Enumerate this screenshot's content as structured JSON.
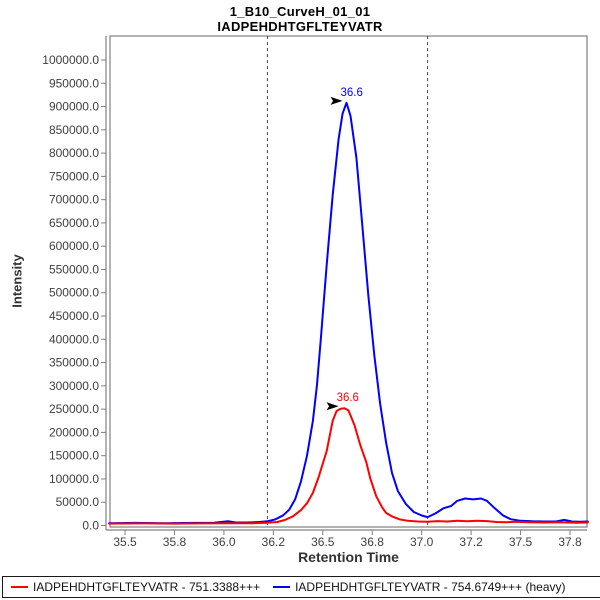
{
  "title": {
    "line1": "1_B10_CurveH_01_01",
    "line2": "IADPEHDHTGFLTEYVATR"
  },
  "axes": {
    "x_label": "Retention Time",
    "y_label": "Intensity"
  },
  "legend": {
    "entries": [
      {
        "label": "IADPEHDHTGFLTEYVATR - 751.3388+++",
        "color": "#ff0000"
      },
      {
        "label": "IADPEHDHTGFLTEYVATR - 754.6749+++ (heavy)",
        "color": "#0000ff"
      }
    ]
  },
  "chart_data": {
    "type": "line",
    "title": "1_B10_CurveH_01_01",
    "subtitle": "IADPEHDHTGFLTEYVATR",
    "xlabel": "Retention Time",
    "ylabel": "Intensity",
    "xlim": [
      35.424,
      37.836
    ],
    "ylim": [
      -3222,
      1051540
    ],
    "grid": false,
    "legend_position": "bottom",
    "x_ticks": [
      {
        "v": 35.5,
        "label": "35.5"
      },
      {
        "v": 35.75,
        "label": "35.8"
      },
      {
        "v": 36.0,
        "label": "36.0"
      },
      {
        "v": 36.25,
        "label": "36.2"
      },
      {
        "v": 36.5,
        "label": "36.5"
      },
      {
        "v": 36.75,
        "label": "36.8"
      },
      {
        "v": 37.0,
        "label": "37.0"
      },
      {
        "v": 37.25,
        "label": "37.2"
      },
      {
        "v": 37.5,
        "label": "37.5"
      },
      {
        "v": 37.75,
        "label": "37.8"
      }
    ],
    "y_ticks": [
      {
        "v": 0,
        "label": "0.0"
      },
      {
        "v": 50000,
        "label": "50000.0"
      },
      {
        "v": 100000,
        "label": "100000.0"
      },
      {
        "v": 150000,
        "label": "150000.0"
      },
      {
        "v": 200000,
        "label": "200000.0"
      },
      {
        "v": 250000,
        "label": "250000.0"
      },
      {
        "v": 300000,
        "label": "300000.0"
      },
      {
        "v": 350000,
        "label": "350000.0"
      },
      {
        "v": 400000,
        "label": "400000.0"
      },
      {
        "v": 450000,
        "label": "450000.0"
      },
      {
        "v": 500000,
        "label": "500000.0"
      },
      {
        "v": 550000,
        "label": "550000.0"
      },
      {
        "v": 600000,
        "label": "600000.0"
      },
      {
        "v": 650000,
        "label": "650000.0"
      },
      {
        "v": 700000,
        "label": "700000.0"
      },
      {
        "v": 750000,
        "label": "750000.0"
      },
      {
        "v": 800000,
        "label": "800000.0"
      },
      {
        "v": 850000,
        "label": "850000.0"
      },
      {
        "v": 900000,
        "label": "900000.0"
      },
      {
        "v": 950000,
        "label": "950000.0"
      },
      {
        "v": 1000000,
        "label": "1000000.0"
      }
    ],
    "integration_boundaries": [
      36.22,
      37.03
    ],
    "series": [
      {
        "name": "IADPEHDHTGFLTEYVATR - 751.3388+++",
        "color": "#ff0000",
        "points": [
          [
            35.42,
            4000
          ],
          [
            35.6,
            4500
          ],
          [
            35.75,
            4000
          ],
          [
            35.9,
            4500
          ],
          [
            36.05,
            5000
          ],
          [
            36.15,
            5000
          ],
          [
            36.22,
            6000
          ],
          [
            36.27,
            7500
          ],
          [
            36.31,
            12000
          ],
          [
            36.35,
            20000
          ],
          [
            36.39,
            33000
          ],
          [
            36.42,
            48000
          ],
          [
            36.45,
            70000
          ],
          [
            36.48,
            105000
          ],
          [
            36.52,
            160000
          ],
          [
            36.55,
            225000
          ],
          [
            36.57,
            246000
          ],
          [
            36.59,
            251000
          ],
          [
            36.61,
            252000
          ],
          [
            36.63,
            247000
          ],
          [
            36.66,
            216000
          ],
          [
            36.69,
            172000
          ],
          [
            36.72,
            136000
          ],
          [
            36.74,
            101000
          ],
          [
            36.77,
            63000
          ],
          [
            36.8,
            39000
          ],
          [
            36.82,
            27000
          ],
          [
            36.85,
            19500
          ],
          [
            36.89,
            13000
          ],
          [
            36.93,
            10000
          ],
          [
            36.98,
            8500
          ],
          [
            37.03,
            8000
          ],
          [
            37.08,
            9500
          ],
          [
            37.13,
            8500
          ],
          [
            37.18,
            10000
          ],
          [
            37.23,
            9000
          ],
          [
            37.28,
            10000
          ],
          [
            37.33,
            9500
          ],
          [
            37.38,
            7500
          ],
          [
            37.43,
            7000
          ],
          [
            37.48,
            8000
          ],
          [
            37.54,
            7000
          ],
          [
            37.62,
            6500
          ],
          [
            37.7,
            7000
          ],
          [
            37.78,
            6000
          ],
          [
            37.84,
            6500
          ]
        ]
      },
      {
        "name": "IADPEHDHTGFLTEYVATR - 754.6749+++ (heavy)",
        "color": "#0000ff",
        "points": [
          [
            35.42,
            5000
          ],
          [
            35.55,
            5500
          ],
          [
            35.7,
            5000
          ],
          [
            35.85,
            5500
          ],
          [
            35.95,
            6000
          ],
          [
            36.02,
            9000
          ],
          [
            36.06,
            6500
          ],
          [
            36.12,
            6500
          ],
          [
            36.18,
            7500
          ],
          [
            36.22,
            9000
          ],
          [
            36.26,
            13000
          ],
          [
            36.3,
            22000
          ],
          [
            36.33,
            34000
          ],
          [
            36.36,
            56000
          ],
          [
            36.39,
            95000
          ],
          [
            36.42,
            150000
          ],
          [
            36.45,
            225000
          ],
          [
            36.47,
            300000
          ],
          [
            36.49,
            400000
          ],
          [
            36.52,
            560000
          ],
          [
            36.55,
            710000
          ],
          [
            36.58,
            830000
          ],
          [
            36.6,
            885000
          ],
          [
            36.62,
            908000
          ],
          [
            36.64,
            880000
          ],
          [
            36.67,
            790000
          ],
          [
            36.7,
            645000
          ],
          [
            36.73,
            495000
          ],
          [
            36.76,
            368000
          ],
          [
            36.79,
            262000
          ],
          [
            36.82,
            178000
          ],
          [
            36.85,
            113000
          ],
          [
            36.88,
            74000
          ],
          [
            36.92,
            46000
          ],
          [
            36.96,
            29000
          ],
          [
            37.0,
            21500
          ],
          [
            37.03,
            18000
          ],
          [
            37.07,
            26000
          ],
          [
            37.11,
            37000
          ],
          [
            37.15,
            42000
          ],
          [
            37.18,
            53000
          ],
          [
            37.22,
            58000
          ],
          [
            37.26,
            56000
          ],
          [
            37.3,
            58000
          ],
          [
            37.33,
            53000
          ],
          [
            37.37,
            37000
          ],
          [
            37.41,
            22000
          ],
          [
            37.45,
            13500
          ],
          [
            37.5,
            10000
          ],
          [
            37.56,
            9000
          ],
          [
            37.62,
            8500
          ],
          [
            37.68,
            8500
          ],
          [
            37.72,
            12000
          ],
          [
            37.76,
            8500
          ],
          [
            37.8,
            8000
          ],
          [
            37.84,
            8500
          ]
        ]
      }
    ],
    "annotations": [
      {
        "label": "36.6",
        "rt": 36.62,
        "intensity": 908000,
        "color": "#0000ff",
        "series": "IADPEHDHTGFLTEYVATR - 754.6749+++ (heavy)"
      },
      {
        "label": "36.6",
        "rt": 36.6,
        "intensity": 252000,
        "color": "#ff0000",
        "series": "IADPEHDHTGFLTEYVATR - 751.3388+++"
      }
    ],
    "colors": {
      "axis_frame": "#808080",
      "tick_text": "#404040",
      "boundary_line": "#4a4a4a",
      "annotation_arrow": "#000000"
    }
  }
}
